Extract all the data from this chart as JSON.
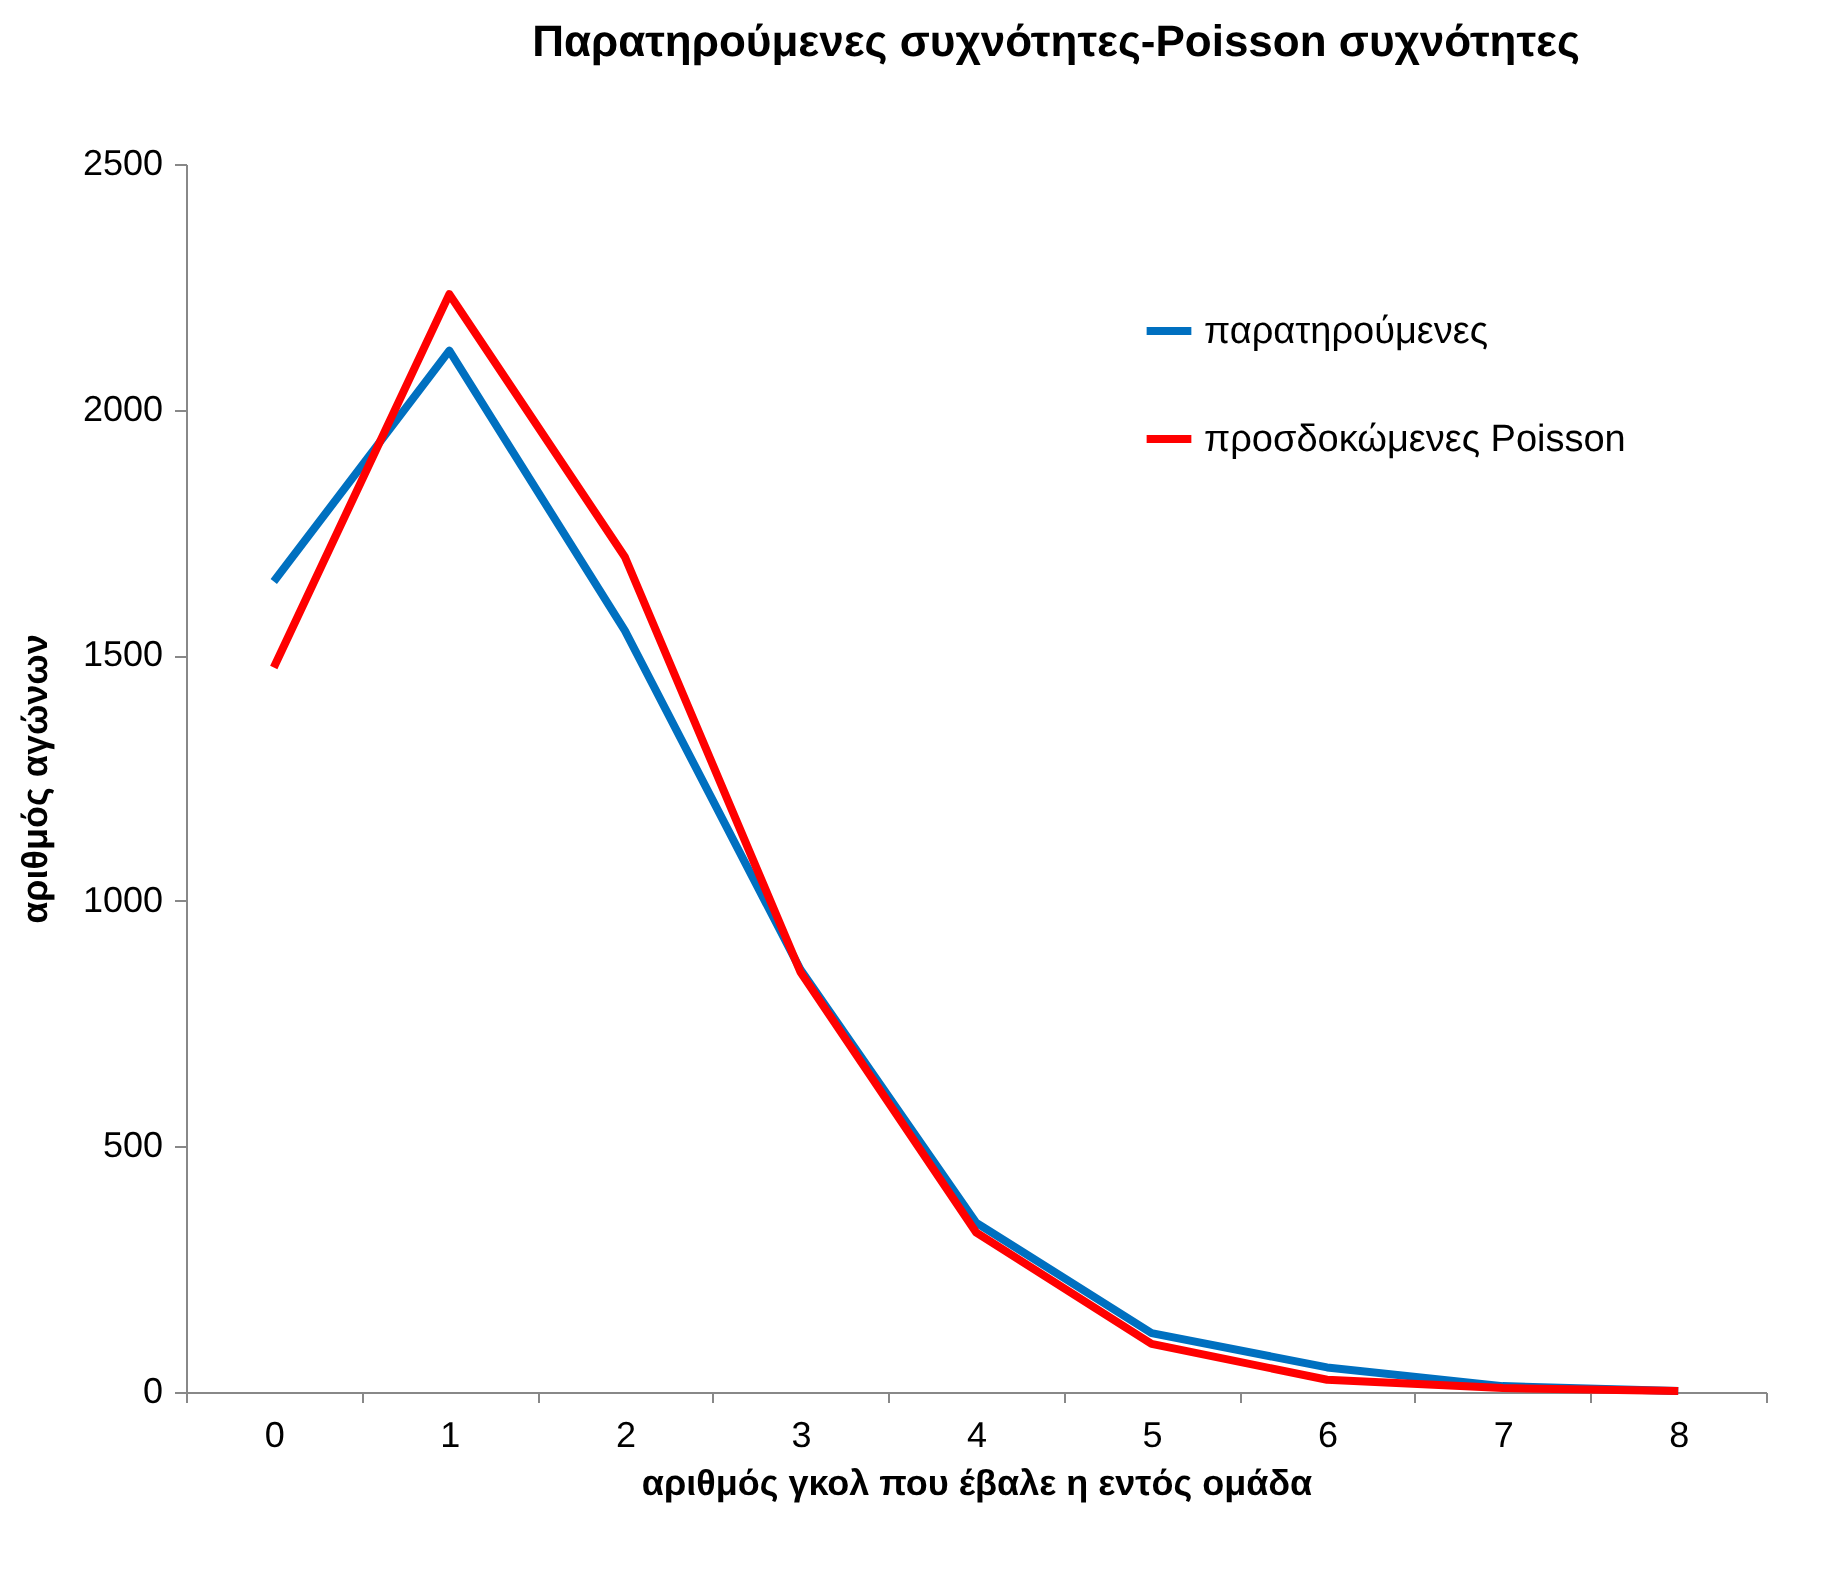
{
  "chart_data": {
    "type": "line",
    "title": "Παρατηρούμενες συχνότητες-Poisson συχνότητες",
    "xlabel": "αριθμός γκολ που έβαλε η εντός ομάδα",
    "ylabel": "αριθμός αγώνων",
    "categories": [
      "0",
      "1",
      "2",
      "3",
      "4",
      "5",
      "6",
      "7",
      "8"
    ],
    "series": [
      {
        "name": "παρατηρούμενες",
        "color": "#0070c0",
        "values": [
          1650,
          2120,
          1550,
          860,
          345,
          120,
          50,
          12,
          2
        ]
      },
      {
        "name": "προσδοκώμενες Poisson",
        "color": "#ff0000",
        "values": [
          1475,
          2235,
          1700,
          855,
          325,
          98,
          25,
          8,
          2
        ]
      }
    ],
    "ylim": [
      0,
      2500
    ],
    "yticks": [
      0,
      500,
      1000,
      1500,
      2000,
      2500
    ],
    "grid": false,
    "legend": "top right",
    "marker": "none",
    "line_style": "solid"
  }
}
